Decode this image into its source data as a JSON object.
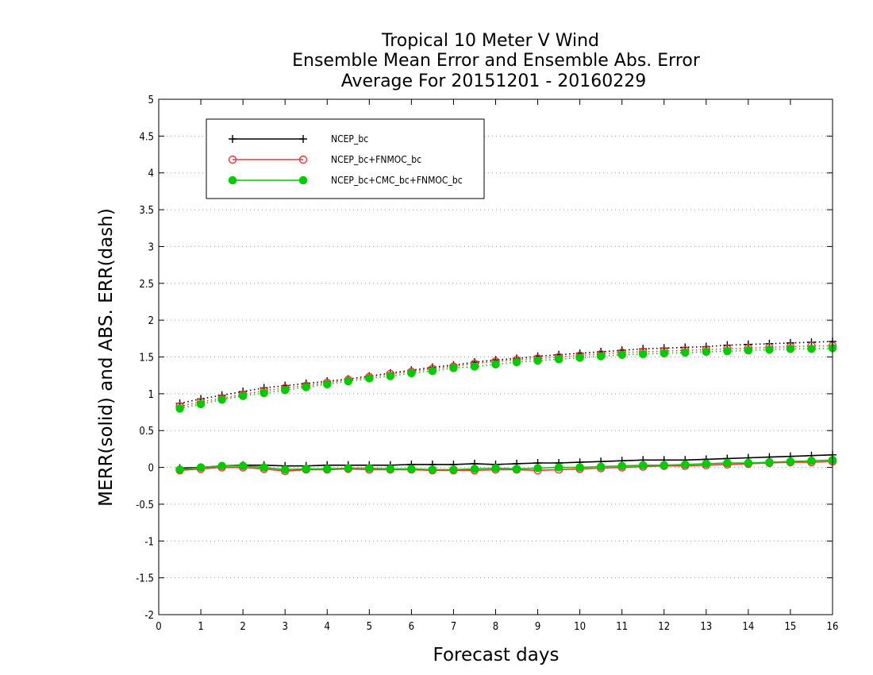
{
  "chart_data": {
    "type": "line",
    "title": [
      "Tropical 10 Meter V Wind",
      "Ensemble Mean Error and Ensemble Abs. Error",
      "Average For 20151201 - 20160229"
    ],
    "xlabel": "Forecast days",
    "ylabel": "MERR(solid) and ABS. ERR(dash)",
    "xlim": [
      0,
      16
    ],
    "ylim": [
      -2,
      5
    ],
    "xticks": [
      0,
      1,
      2,
      3,
      4,
      5,
      6,
      7,
      8,
      9,
      10,
      11,
      12,
      13,
      14,
      15,
      16
    ],
    "yticks": [
      -2,
      -1.5,
      -1,
      -0.5,
      0,
      0.5,
      1,
      1.5,
      2,
      2.5,
      3,
      3.5,
      4,
      4.5,
      5
    ],
    "ytick_labels": [
      "-2",
      "-1.5",
      "-1",
      "-0.5",
      "0",
      "0.5",
      "1",
      "1.5",
      "2",
      "2.5",
      "3",
      "3.5",
      "4",
      "4.5",
      "5"
    ],
    "grid": "horizontal dotted",
    "legend_position": "top-left",
    "x": [
      0.5,
      1,
      1.5,
      2,
      2.5,
      3,
      3.5,
      4,
      4.5,
      5,
      5.5,
      6,
      6.5,
      7,
      7.5,
      8,
      8.5,
      9,
      9.5,
      10,
      10.5,
      11,
      11.5,
      12,
      12.5,
      13,
      13.5,
      14,
      14.5,
      15,
      15.5,
      16
    ],
    "series": [
      {
        "name": "NCEP_bc",
        "color": "#000000",
        "marker": "plus",
        "mean_error": [
          -0.01,
          0.0,
          0.02,
          0.03,
          0.03,
          0.02,
          0.02,
          0.03,
          0.03,
          0.03,
          0.03,
          0.04,
          0.04,
          0.04,
          0.05,
          0.04,
          0.05,
          0.06,
          0.06,
          0.07,
          0.08,
          0.09,
          0.1,
          0.1,
          0.1,
          0.11,
          0.12,
          0.13,
          0.14,
          0.15,
          0.16,
          0.17
        ],
        "abs_error": [
          0.87,
          0.93,
          0.98,
          1.03,
          1.08,
          1.11,
          1.14,
          1.17,
          1.2,
          1.24,
          1.28,
          1.32,
          1.36,
          1.39,
          1.43,
          1.46,
          1.48,
          1.51,
          1.53,
          1.55,
          1.57,
          1.59,
          1.61,
          1.62,
          1.63,
          1.64,
          1.66,
          1.67,
          1.68,
          1.69,
          1.7,
          1.71
        ]
      },
      {
        "name": "NCEP_bc+FNMOC_bc",
        "color": "#ff3030",
        "marker": "open-circle",
        "mean_error": [
          -0.04,
          -0.02,
          0.0,
          0.0,
          -0.02,
          -0.05,
          -0.03,
          -0.03,
          -0.02,
          -0.03,
          -0.03,
          -0.03,
          -0.04,
          -0.04,
          -0.04,
          -0.03,
          -0.03,
          -0.04,
          -0.03,
          -0.02,
          -0.01,
          0.0,
          0.01,
          0.02,
          0.02,
          0.03,
          0.04,
          0.05,
          0.06,
          0.07,
          0.07,
          0.08
        ],
        "abs_error": [
          0.83,
          0.89,
          0.94,
          0.99,
          1.04,
          1.08,
          1.11,
          1.15,
          1.19,
          1.23,
          1.27,
          1.3,
          1.34,
          1.37,
          1.41,
          1.44,
          1.46,
          1.48,
          1.5,
          1.52,
          1.54,
          1.56,
          1.57,
          1.58,
          1.59,
          1.6,
          1.61,
          1.62,
          1.63,
          1.64,
          1.65,
          1.65
        ]
      },
      {
        "name": "NCEP_bc+CMC_bc+FNMOC_bc",
        "color": "#00cc00",
        "marker": "filled-circle",
        "mean_error": [
          -0.03,
          0.0,
          0.02,
          0.02,
          0.0,
          -0.03,
          -0.02,
          -0.02,
          -0.01,
          -0.01,
          -0.02,
          -0.02,
          -0.03,
          -0.03,
          -0.02,
          -0.01,
          -0.02,
          -0.01,
          0.0,
          0.0,
          0.01,
          0.02,
          0.03,
          0.03,
          0.04,
          0.05,
          0.06,
          0.06,
          0.07,
          0.08,
          0.09,
          0.1
        ],
        "abs_error": [
          0.8,
          0.86,
          0.92,
          0.97,
          1.01,
          1.05,
          1.09,
          1.13,
          1.17,
          1.21,
          1.24,
          1.28,
          1.31,
          1.35,
          1.37,
          1.4,
          1.43,
          1.45,
          1.47,
          1.49,
          1.51,
          1.53,
          1.54,
          1.55,
          1.56,
          1.57,
          1.58,
          1.59,
          1.6,
          1.61,
          1.61,
          1.62
        ]
      }
    ]
  }
}
